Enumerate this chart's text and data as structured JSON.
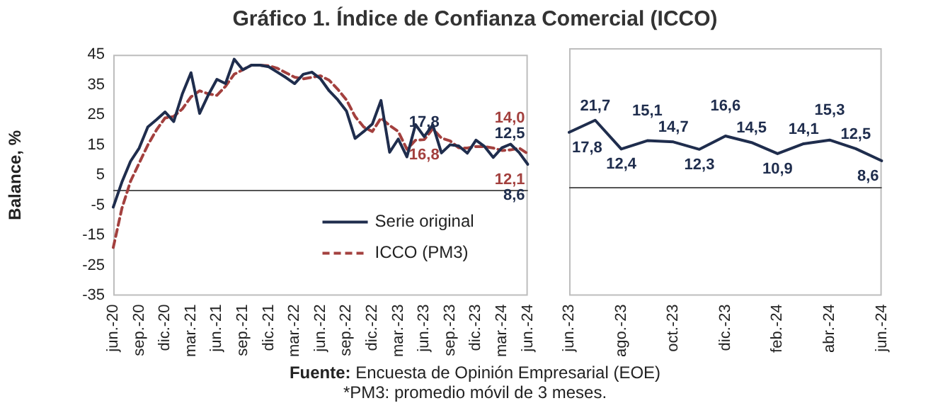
{
  "chart_data": [
    {
      "type": "line",
      "title": "Gráfico 1. Índice de Confianza Comercial (ICCO)",
      "ylabel": "Balance, %",
      "categories": [
        "jun.-20",
        null,
        null,
        "sep.-20",
        null,
        null,
        "dic.-20",
        null,
        null,
        "mar.-21",
        null,
        null,
        "jun.-21",
        null,
        null,
        "sep.-21",
        null,
        null,
        "dic.-21",
        null,
        null,
        "mar.-22",
        null,
        null,
        "jun.-22",
        null,
        null,
        "sep.-22",
        null,
        null,
        "dic.-22",
        null,
        null,
        "mar.-23",
        null,
        null,
        "jun.-23",
        null,
        null,
        "sep.-23",
        null,
        null,
        "dic.-23",
        null,
        null,
        "mar.-24",
        null,
        null,
        "jun.-24"
      ],
      "series": [
        {
          "name": "Serie original",
          "color": "#1f2d4d",
          "line_style": "solid",
          "values": [
            -5.6,
            2.7,
            9.6,
            14,
            21,
            23.4,
            26,
            22.8,
            32,
            39,
            25.5,
            31.6,
            36.8,
            35.4,
            43.5,
            40,
            41.5,
            41.5,
            41,
            39.2,
            37.4,
            35.4,
            38.5,
            39.2,
            37,
            33,
            30,
            26.3,
            17.2,
            19.5,
            22,
            29.8,
            12.6,
            17,
            11.1,
            21.8,
            17.8,
            21.7,
            12.4,
            15.1,
            14.7,
            12.3,
            16.6,
            14.5,
            10.9,
            14.1,
            15.3,
            12.5,
            8.6
          ],
          "value_labels": [
            null,
            null,
            null,
            null,
            null,
            null,
            null,
            null,
            null,
            null,
            null,
            null,
            null,
            null,
            null,
            null,
            null,
            null,
            null,
            null,
            null,
            null,
            null,
            null,
            null,
            null,
            null,
            null,
            null,
            null,
            null,
            null,
            null,
            null,
            null,
            null,
            "17,8",
            null,
            null,
            null,
            null,
            null,
            null,
            null,
            null,
            null,
            null,
            "12,5",
            "8,6"
          ]
        },
        {
          "name": "ICCO (PM3)",
          "color": "#a3403e",
          "line_style": "dashed",
          "values": [
            -19,
            -6,
            3,
            9,
            15,
            20,
            24,
            24.5,
            27,
            31,
            33,
            32,
            31.5,
            34.5,
            38.5,
            40,
            41.5,
            41.5,
            41.3,
            40.5,
            39,
            37.5,
            37,
            37.5,
            38,
            36.5,
            33.5,
            30,
            24.5,
            21,
            19.5,
            24,
            21.5,
            19.5,
            13.6,
            16.6,
            16.8,
            20.4,
            17.3,
            16.4,
            14.1,
            14,
            14.5,
            14.5,
            14,
            13.2,
            13.4,
            14,
            12.1
          ],
          "value_labels": [
            null,
            null,
            null,
            null,
            null,
            null,
            null,
            null,
            null,
            null,
            null,
            null,
            null,
            null,
            null,
            null,
            null,
            null,
            null,
            null,
            null,
            null,
            null,
            null,
            null,
            null,
            null,
            null,
            null,
            null,
            null,
            null,
            null,
            null,
            null,
            null,
            "16,8",
            null,
            null,
            null,
            null,
            null,
            null,
            null,
            null,
            null,
            null,
            "14,0",
            "12,1"
          ]
        }
      ],
      "ylim": [
        -35,
        45
      ],
      "yticks": [
        -35,
        -25,
        -15,
        -5,
        5,
        15,
        25,
        35,
        45
      ],
      "grid": false,
      "legend": "bottom right",
      "marker": "none",
      "ref_lines": [
        {
          "axis": "y",
          "value": 0,
          "label": null
        }
      ],
      "annotations": [
        "Fuente: Encuesta de Opinión Empresarial (EOE)",
        "*PM3: promedio móvil de 3 meses."
      ]
    },
    {
      "type": "line",
      "categories": [
        "jun.-23",
        null,
        "ago.-23",
        null,
        "oct.-23",
        null,
        "dic.-23",
        null,
        "feb.-24",
        null,
        "abr.-24",
        null,
        "jun.-24"
      ],
      "series": [
        {
          "color": "#1f2d4d",
          "values": [
            17.8,
            21.7,
            12.4,
            15.1,
            14.7,
            12.3,
            16.6,
            14.5,
            10.9,
            14.1,
            15.3,
            12.5,
            8.6
          ],
          "value_labels": [
            "17,8",
            "21,7",
            "12,4",
            "15,1",
            "14,7",
            "12,3",
            "16,6",
            "14,5",
            "10,9",
            "14,1",
            "15,3",
            "12,5",
            "8,6"
          ]
        }
      ],
      "ylim": [
        -35,
        45
      ],
      "tick_labels": "x",
      "grid": false,
      "legend": false,
      "marker": "none",
      "ref_lines": [
        {
          "axis": "y",
          "value": 0,
          "label": null
        }
      ]
    }
  ]
}
